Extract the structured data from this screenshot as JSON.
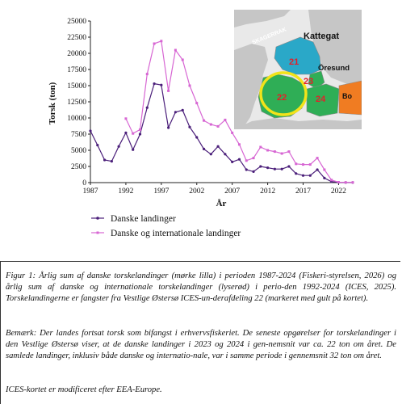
{
  "chart_data": {
    "type": "line",
    "title": "",
    "xlabel": "År",
    "ylabel": "Torsk (ton)",
    "xlim": [
      1987,
      2024
    ],
    "ylim": [
      0,
      25000
    ],
    "x_ticks": [
      1987,
      1992,
      1997,
      2002,
      2007,
      2012,
      2017,
      2022
    ],
    "y_ticks": [
      0,
      2500,
      5000,
      7500,
      10000,
      12500,
      15000,
      17500,
      20000,
      22500,
      25000
    ],
    "y_tick_labels": [
      "0",
      "2500",
      "5000",
      "7500",
      "10000",
      "12500",
      "15000",
      "17500",
      "20000",
      "22500",
      "25000"
    ],
    "grid": false,
    "legend_position": "bottom-left",
    "series": [
      {
        "name": "Danske landinger",
        "color": "#4b1f7a",
        "x": [
          1987,
          1988,
          1989,
          1990,
          1991,
          1992,
          1993,
          1994,
          1995,
          1996,
          1997,
          1998,
          1999,
          2000,
          2001,
          2002,
          2003,
          2004,
          2005,
          2006,
          2007,
          2008,
          2009,
          2010,
          2011,
          2012,
          2013,
          2014,
          2015,
          2016,
          2017,
          2018,
          2019,
          2020,
          2021,
          2022,
          2023,
          2024
        ],
        "values": [
          8000,
          5800,
          3500,
          3300,
          5600,
          7700,
          5100,
          7500,
          11600,
          15300,
          15100,
          8500,
          10900,
          11200,
          8600,
          7000,
          5200,
          4400,
          5600,
          4400,
          3200,
          3600,
          2000,
          1700,
          2500,
          2300,
          2100,
          2100,
          2500,
          1400,
          1100,
          1100,
          2000,
          700,
          150,
          50,
          22,
          22
        ]
      },
      {
        "name": "Danske og internationale landinger",
        "color": "#d766d3",
        "x": [
          1992,
          1993,
          1994,
          1995,
          1996,
          1997,
          1998,
          1999,
          2000,
          2001,
          2002,
          2003,
          2004,
          2005,
          2006,
          2007,
          2008,
          2009,
          2010,
          2011,
          2012,
          2013,
          2014,
          2015,
          2016,
          2017,
          2018,
          2019,
          2020,
          2021,
          2022,
          2023,
          2024
        ],
        "values": [
          9900,
          7600,
          8200,
          16800,
          21500,
          21900,
          14200,
          20500,
          19000,
          15000,
          12300,
          9600,
          9000,
          8700,
          9700,
          7700,
          5900,
          3400,
          3800,
          5500,
          5000,
          4800,
          4500,
          4800,
          2900,
          2800,
          2800,
          3800,
          2000,
          400,
          60,
          32,
          32
        ]
      }
    ]
  },
  "map": {
    "labels": {
      "skagerrak": "SKAGERRAK",
      "kattegat": "Kattegat",
      "oresund": "Öresund",
      "area21": "21",
      "area22": "22",
      "area23": "23",
      "area24": "24",
      "bornholm": "Bo"
    },
    "colors": {
      "area21": "#2aa8c8",
      "area22": "#2fae56",
      "area24": "#f07c22",
      "highlight_ring": "#f2e31a",
      "number_text": "#e2202a"
    }
  },
  "caption": {
    "figure_text": "Figur 1: Årlig sum af danske torskelandinger (mørke lilla) i perioden 1987-2024 (Fiskeri-styrelsen, 2026) og årlig sum af danske og internationale torskelandinger (lyserød) i perio-den 1992-2024 (ICES, 2025). Torskelandingerne er fangster fra Vestlige Østersø ICES-un-derafdeling 22 (markeret med gult på kortet).",
    "note_text": "Bemærk: Der landes fortsat torsk som bifangst i erhvervsfiskeriet. De seneste opgørelser for torskelandinger i den Vestlige Østersø viser, at de danske landinger i 2023 og 2024 i gen-nemsnit var ca. 22 ton om året. De samlede landinger, inklusiv både danske og internatio-nale, var i samme periode i gennemsnit 32 ton om året.",
    "source_text": "ICES-kortet er modificeret efter EEA-Europe."
  }
}
